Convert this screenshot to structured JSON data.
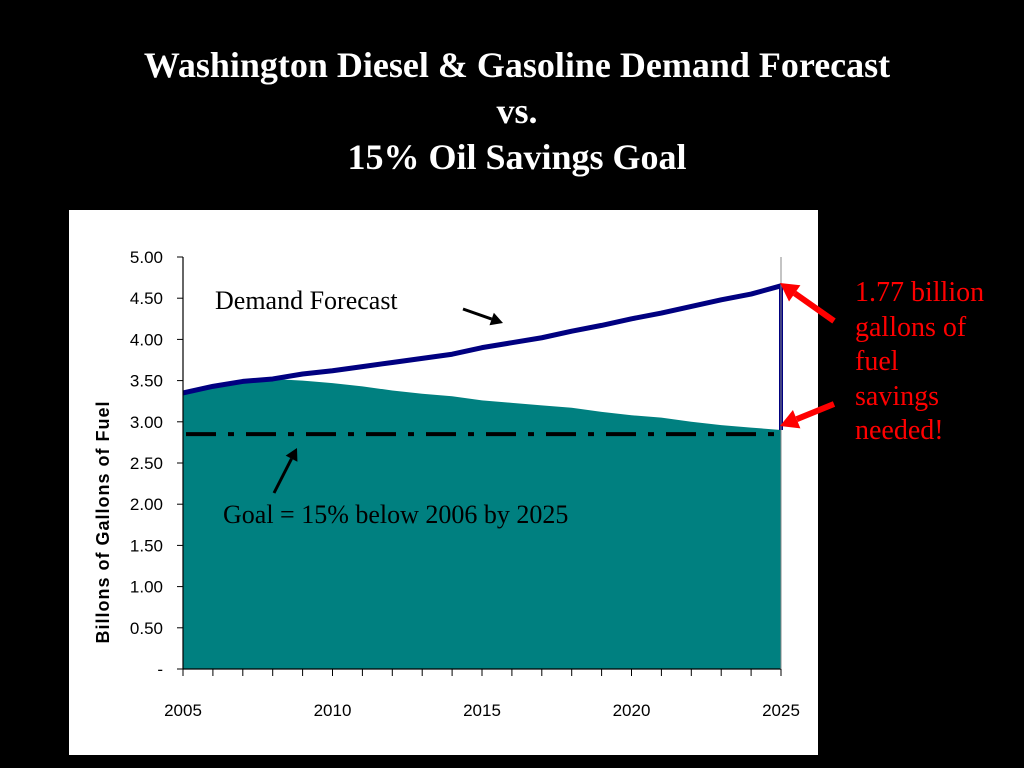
{
  "slide": {
    "title_lines": [
      "Washington Diesel & Gasoline Demand Forecast",
      "vs.",
      "15% Oil Savings Goal"
    ],
    "annotation_lines": [
      "1.77 billion",
      "gallons of",
      "fuel",
      "savings",
      "needed!"
    ],
    "colors": {
      "background": "#000000",
      "panel": "#ffffff",
      "forecast_line": "#000080",
      "area_fill": "#008080",
      "goal_line": "#000000",
      "annotation": "#ff0000"
    }
  },
  "chart_data": {
    "type": "area",
    "title": "",
    "xlabel": "",
    "ylabel": "Billons of Gallons of Fuel",
    "xlim": [
      2005,
      2025
    ],
    "ylim": [
      0,
      5
    ],
    "x_tick_labels": [
      "2005",
      "2010",
      "2015",
      "2020",
      "2025"
    ],
    "y_tick_labels": [
      "-",
      "0.50",
      "1.00",
      "1.50",
      "2.00",
      "2.50",
      "3.00",
      "3.50",
      "4.00",
      "4.50",
      "5.00"
    ],
    "series": [
      {
        "name": "Demand Forecast",
        "style": "line",
        "x": [
          2005,
          2006,
          2007,
          2008,
          2009,
          2010,
          2011,
          2012,
          2013,
          2014,
          2015,
          2016,
          2017,
          2018,
          2019,
          2020,
          2021,
          2022,
          2023,
          2024,
          2025
        ],
        "values": [
          3.35,
          3.43,
          3.49,
          3.52,
          3.58,
          3.62,
          3.67,
          3.72,
          3.77,
          3.82,
          3.9,
          3.96,
          4.02,
          4.1,
          4.17,
          4.25,
          4.32,
          4.4,
          4.48,
          4.55,
          4.65
        ]
      },
      {
        "name": "",
        "style": "area",
        "x": [
          2005,
          2006,
          2007,
          2008,
          2009,
          2010,
          2011,
          2012,
          2013,
          2014,
          2015,
          2016,
          2017,
          2018,
          2019,
          2020,
          2021,
          2022,
          2023,
          2024,
          2025
        ],
        "values": [
          3.35,
          3.43,
          3.49,
          3.52,
          3.5,
          3.47,
          3.43,
          3.38,
          3.34,
          3.31,
          3.26,
          3.23,
          3.2,
          3.17,
          3.12,
          3.08,
          3.05,
          3.0,
          2.96,
          2.93,
          2.9
        ]
      }
    ],
    "goal_value": 2.85,
    "annotations": [
      {
        "text": "Demand Forecast"
      },
      {
        "text": "Goal = 15% below 2006 by 2025"
      }
    ]
  }
}
